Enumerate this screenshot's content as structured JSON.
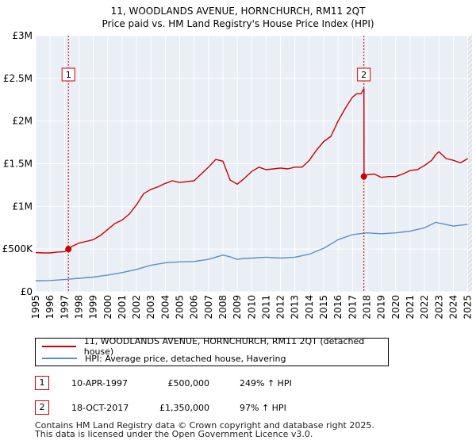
{
  "chart_data": {
    "type": "line",
    "title": "11, WOODLANDS AVENUE, HORNCHURCH, RM11 2QT",
    "subtitle": "Price paid vs. HM Land Registry's House Price Index (HPI)",
    "xlim": [
      1995,
      2025.3
    ],
    "ylim": [
      0,
      3000000
    ],
    "y_ticks": [
      {
        "value": 0,
        "label": "£0"
      },
      {
        "value": 500000,
        "label": "£500K"
      },
      {
        "value": 1000000,
        "label": "£1M"
      },
      {
        "value": 1500000,
        "label": "£1.5M"
      },
      {
        "value": 2000000,
        "label": "£2M"
      },
      {
        "value": 2500000,
        "label": "£2.5M"
      },
      {
        "value": 3000000,
        "label": "£3M"
      }
    ],
    "x_ticks": [
      "1995",
      "1996",
      "1997",
      "1998",
      "1999",
      "2000",
      "2001",
      "2002",
      "2003",
      "2004",
      "2005",
      "2006",
      "2007",
      "2008",
      "2009",
      "2010",
      "2011",
      "2012",
      "2013",
      "2014",
      "2015",
      "2016",
      "2017",
      "2018",
      "2019",
      "2020",
      "2021",
      "2022",
      "2023",
      "2024",
      "2025"
    ],
    "grid": true,
    "series": [
      {
        "name": "11, WOODLANDS AVENUE, HORNCHURCH, RM11 2QT (detached house)",
        "color": "#cc0000",
        "x": [
          1995.0,
          1995.5,
          1996.0,
          1996.5,
          1997.0,
          1997.27,
          1997.5,
          1998.0,
          1998.5,
          1999.0,
          1999.5,
          2000.0,
          2000.5,
          2001.0,
          2001.5,
          2002.0,
          2002.5,
          2003.0,
          2003.5,
          2004.0,
          2004.5,
          2005.0,
          2005.5,
          2006.0,
          2006.5,
          2007.0,
          2007.5,
          2008.0,
          2008.5,
          2009.0,
          2009.5,
          2010.0,
          2010.5,
          2011.0,
          2011.5,
          2012.0,
          2012.5,
          2013.0,
          2013.5,
          2014.0,
          2014.5,
          2015.0,
          2015.5,
          2016.0,
          2016.5,
          2017.0,
          2017.3,
          2017.6,
          2017.79,
          2017.8,
          2018.0,
          2018.5,
          2019.0,
          2019.5,
          2020.0,
          2020.5,
          2021.0,
          2021.5,
          2022.0,
          2022.5,
          2022.8,
          2023.0,
          2023.5,
          2024.0,
          2024.5,
          2025.0
        ],
        "values": [
          460000,
          455000,
          455000,
          465000,
          470000,
          500000,
          530000,
          570000,
          590000,
          610000,
          660000,
          730000,
          800000,
          840000,
          910000,
          1020000,
          1150000,
          1200000,
          1230000,
          1270000,
          1300000,
          1280000,
          1290000,
          1300000,
          1380000,
          1460000,
          1550000,
          1530000,
          1310000,
          1260000,
          1330000,
          1410000,
          1460000,
          1430000,
          1440000,
          1450000,
          1440000,
          1460000,
          1460000,
          1540000,
          1660000,
          1760000,
          1820000,
          2000000,
          2150000,
          2280000,
          2320000,
          2320000,
          2380000,
          1350000,
          1370000,
          1380000,
          1340000,
          1350000,
          1350000,
          1380000,
          1420000,
          1430000,
          1480000,
          1540000,
          1610000,
          1640000,
          1560000,
          1540000,
          1510000,
          1560000
        ]
      },
      {
        "name": "HPI: Average price, detached house, Havering",
        "color": "#5b8fc9",
        "x": [
          1995.0,
          1996.0,
          1997.0,
          1998.0,
          1999.0,
          2000.0,
          2001.0,
          2002.0,
          2003.0,
          2004.0,
          2005.0,
          2006.0,
          2007.0,
          2008.0,
          2008.5,
          2009.0,
          2009.5,
          2010.0,
          2011.0,
          2012.0,
          2013.0,
          2014.0,
          2015.0,
          2016.0,
          2017.0,
          2018.0,
          2019.0,
          2020.0,
          2021.0,
          2022.0,
          2022.8,
          2023.0,
          2024.0,
          2025.0
        ],
        "values": [
          130000,
          132000,
          143000,
          158000,
          172000,
          196000,
          225000,
          262000,
          310000,
          340000,
          350000,
          355000,
          380000,
          430000,
          410000,
          380000,
          390000,
          395000,
          405000,
          395000,
          405000,
          440000,
          510000,
          610000,
          670000,
          690000,
          680000,
          690000,
          710000,
          750000,
          815000,
          805000,
          770000,
          790000
        ]
      }
    ],
    "annotations": [
      {
        "label": "1",
        "x": 1997.27,
        "y": 500000
      },
      {
        "label": "2",
        "x": 2017.79,
        "y": 1350000
      }
    ]
  },
  "legend": {
    "property_label": "11, WOODLANDS AVENUE, HORNCHURCH, RM11 2QT (detached house)",
    "hpi_label": "HPI: Average price, detached house, Havering"
  },
  "transactions": [
    {
      "marker": "1",
      "date": "10-APR-1997",
      "price": "£500,000",
      "hpi": "249% ↑ HPI"
    },
    {
      "marker": "2",
      "date": "18-OCT-2017",
      "price": "£1,350,000",
      "hpi": "97% ↑ HPI"
    }
  ],
  "footer": {
    "line1": "Contains HM Land Registry data © Crown copyright and database right 2025.",
    "line2": "This data is licensed under the Open Government Licence v3.0."
  }
}
